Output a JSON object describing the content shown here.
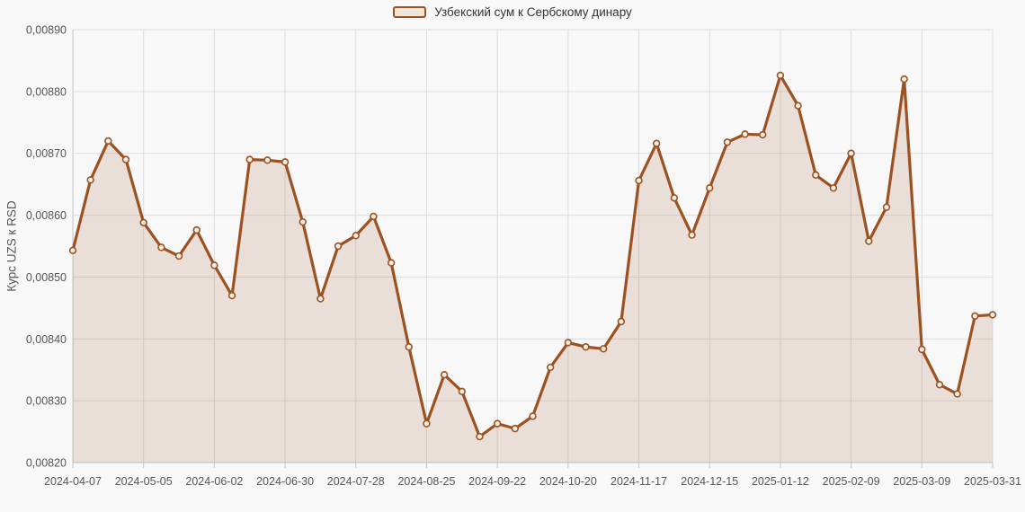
{
  "chart_data": {
    "type": "area",
    "title": "",
    "legend": "Узбекский сум к Сербскому динару",
    "ylabel": "Курс UZS к RSD",
    "xlabel": "",
    "ylim": [
      0.0082,
      0.0089
    ],
    "grid": true,
    "legend_position": "top-center",
    "x": [
      "2024-04-07",
      "2024-04-14",
      "2024-04-21",
      "2024-04-28",
      "2024-05-05",
      "2024-05-12",
      "2024-05-19",
      "2024-05-26",
      "2024-06-02",
      "2024-06-09",
      "2024-06-16",
      "2024-06-23",
      "2024-06-30",
      "2024-07-07",
      "2024-07-14",
      "2024-07-21",
      "2024-07-28",
      "2024-08-04",
      "2024-08-11",
      "2024-08-18",
      "2024-08-25",
      "2024-09-01",
      "2024-09-08",
      "2024-09-15",
      "2024-09-22",
      "2024-09-29",
      "2024-10-06",
      "2024-10-13",
      "2024-10-20",
      "2024-10-27",
      "2024-11-03",
      "2024-11-10",
      "2024-11-17",
      "2024-11-24",
      "2024-12-01",
      "2024-12-08",
      "2024-12-15",
      "2024-12-22",
      "2024-12-29",
      "2025-01-05",
      "2025-01-12",
      "2025-01-19",
      "2025-01-26",
      "2025-02-02",
      "2025-02-09",
      "2025-02-16",
      "2025-02-23",
      "2025-03-02",
      "2025-03-09",
      "2025-03-16",
      "2025-03-23",
      "2025-03-30",
      "2025-03-31"
    ],
    "values": [
      0.008543,
      0.008657,
      0.00872,
      0.00869,
      0.008588,
      0.008548,
      0.008534,
      0.008576,
      0.008519,
      0.00847,
      0.00869,
      0.008689,
      0.008686,
      0.008589,
      0.008465,
      0.00855,
      0.008567,
      0.008598,
      0.008523,
      0.008387,
      0.008263,
      0.008342,
      0.008315,
      0.008242,
      0.008263,
      0.008255,
      0.008275,
      0.008354,
      0.008394,
      0.008387,
      0.008384,
      0.008428,
      0.008656,
      0.008716,
      0.008628,
      0.008568,
      0.008644,
      0.008718,
      0.008731,
      0.00873,
      0.008826,
      0.008777,
      0.008665,
      0.008644,
      0.0087,
      0.008558,
      0.008613,
      0.00882,
      0.008383,
      0.008326,
      0.008311,
      0.008437,
      0.008439
    ],
    "x_tick_indices": [
      0,
      4,
      8,
      12,
      16,
      20,
      24,
      28,
      32,
      36,
      40,
      44,
      48,
      52
    ],
    "x_tick_labels": [
      "2024-04-07",
      "2024-05-05",
      "2024-06-02",
      "2024-06-30",
      "2024-07-28",
      "2024-08-25",
      "2024-09-22",
      "2024-10-20",
      "2024-11-17",
      "2024-12-15",
      "2025-01-12",
      "2025-02-09",
      "2025-03-09",
      "2025-03-31"
    ],
    "y_ticks": [
      {
        "value": 0.0089,
        "label": "0,00890"
      },
      {
        "value": 0.0088,
        "label": "0,00880"
      },
      {
        "value": 0.0087,
        "label": "0,00870"
      },
      {
        "value": 0.0086,
        "label": "0,00860"
      },
      {
        "value": 0.0085,
        "label": "0,00850"
      },
      {
        "value": 0.0084,
        "label": "0,00840"
      },
      {
        "value": 0.0083,
        "label": "0,00830"
      },
      {
        "value": 0.0082,
        "label": "0,00820"
      }
    ],
    "colors": {
      "line": "#9b5220",
      "area_fill": "rgba(154,82,32,0.15)",
      "marker_fill": "#f5efe6",
      "grid": "#dddddd",
      "axis_line": "#c5c5c5",
      "axis_text": "#555555",
      "legend_text": "#333333",
      "legend_swatch_fill": "#ece6dd",
      "background": "#f8f8f8"
    }
  }
}
